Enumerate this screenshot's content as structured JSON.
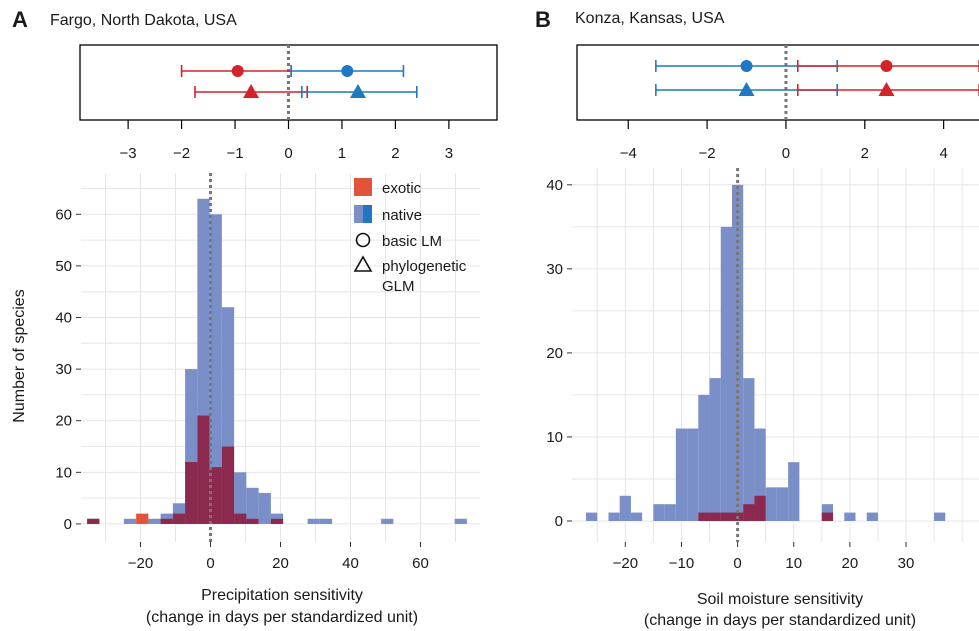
{
  "colors": {
    "exotic": "#d2232a",
    "native": "#1f78c1",
    "hist_native": "#7a8fc8",
    "hist_exotic": "#8b2a4e",
    "exotic_only": "#e0553a",
    "grid": "#e6e6e6",
    "zero_line": "#777777"
  },
  "legend": {
    "exotic": "exotic",
    "native": "native",
    "basic_lm": "basic LM",
    "phylo_line1": "phylogenetic",
    "phylo_line2": "GLM"
  },
  "chart_data": [
    {
      "panel": "A",
      "title": "Fargo, North Dakota, USA",
      "type": "bar",
      "xlabel_line1": "Precipitation sensitivity",
      "xlabel_line2": "(change in days per standardized unit)",
      "ylabel": "Number of species",
      "xlim": [
        -37,
        77
      ],
      "ylim": [
        -3.5,
        68
      ],
      "xticks": [
        -20,
        0,
        20,
        40,
        60
      ],
      "yticks": [
        0,
        10,
        20,
        30,
        40,
        50,
        60
      ],
      "bin_width": 3.5,
      "bins_native": [
        {
          "x": -33.5,
          "count": 1
        },
        {
          "x": -23,
          "count": 1
        },
        {
          "x": -16,
          "count": 1
        },
        {
          "x": -12.5,
          "count": 2
        },
        {
          "x": -9,
          "count": 4
        },
        {
          "x": -5.5,
          "count": 30
        },
        {
          "x": -2,
          "count": 63
        },
        {
          "x": 1.5,
          "count": 60
        },
        {
          "x": 5,
          "count": 42
        },
        {
          "x": 8.5,
          "count": 10
        },
        {
          "x": 12,
          "count": 7
        },
        {
          "x": 15.5,
          "count": 6
        },
        {
          "x": 19,
          "count": 2
        },
        {
          "x": 29.5,
          "count": 1
        },
        {
          "x": 33,
          "count": 1
        },
        {
          "x": 50.5,
          "count": 1
        },
        {
          "x": 71.5,
          "count": 1
        }
      ],
      "bins_exotic": [
        {
          "x": -33.5,
          "count": 1
        },
        {
          "x": -12.5,
          "count": 1
        },
        {
          "x": -9,
          "count": 2
        },
        {
          "x": -5.5,
          "count": 12
        },
        {
          "x": -2,
          "count": 21
        },
        {
          "x": 1.5,
          "count": 11
        },
        {
          "x": 5,
          "count": 15
        },
        {
          "x": 8.5,
          "count": 2
        },
        {
          "x": 12,
          "count": 1
        },
        {
          "x": 19,
          "count": 1
        }
      ],
      "bins_exotic_only": [
        {
          "x": -19.5,
          "count": 2
        }
      ],
      "coef": {
        "xlim": [
          -3.9,
          3.9
        ],
        "xticks": [
          -3,
          -2,
          -1,
          0,
          1,
          2,
          3
        ],
        "estimates": [
          {
            "group": "exotic",
            "model": "basic LM",
            "mean": -0.95,
            "lo": -2.0,
            "hi": 0.05
          },
          {
            "group": "native",
            "model": "basic LM",
            "mean": 1.1,
            "lo": 0.05,
            "hi": 2.15
          },
          {
            "group": "exotic",
            "model": "phylogenetic GLM",
            "mean": -0.7,
            "lo": -1.75,
            "hi": 0.35
          },
          {
            "group": "native",
            "model": "phylogenetic GLM",
            "mean": 1.3,
            "lo": 0.25,
            "hi": 2.4
          }
        ]
      }
    },
    {
      "panel": "B",
      "title": "Konza, Kansas, USA",
      "type": "bar",
      "xlabel_line1": "Soil moisture sensitivity",
      "xlabel_line2": "(change in days per standardized unit)",
      "ylabel": "",
      "xlim": [
        -29.5,
        43
      ],
      "ylim": [
        -2.5,
        42
      ],
      "xticks": [
        -20,
        -10,
        0,
        10,
        20,
        30
      ],
      "yticks": [
        0,
        10,
        20,
        30,
        40
      ],
      "bin_width": 2,
      "bins_native": [
        {
          "x": -26,
          "count": 1
        },
        {
          "x": -20,
          "count": 3
        },
        {
          "x": -22,
          "count": 1
        },
        {
          "x": -18,
          "count": 1
        },
        {
          "x": -14,
          "count": 2
        },
        {
          "x": -12,
          "count": 2
        },
        {
          "x": -10,
          "count": 11
        },
        {
          "x": -8,
          "count": 11
        },
        {
          "x": -6,
          "count": 15
        },
        {
          "x": -4,
          "count": 17
        },
        {
          "x": -2,
          "count": 35
        },
        {
          "x": 0,
          "count": 40
        },
        {
          "x": 2,
          "count": 17
        },
        {
          "x": 4,
          "count": 11
        },
        {
          "x": 6,
          "count": 4
        },
        {
          "x": 8,
          "count": 4
        },
        {
          "x": 10,
          "count": 7
        },
        {
          "x": 12,
          "count": 0
        },
        {
          "x": 16,
          "count": 2
        },
        {
          "x": 20,
          "count": 1
        },
        {
          "x": 24,
          "count": 1
        },
        {
          "x": 36,
          "count": 1
        }
      ],
      "bins_exotic": [
        {
          "x": -6,
          "count": 1
        },
        {
          "x": -4,
          "count": 1
        },
        {
          "x": -2,
          "count": 1
        },
        {
          "x": 0,
          "count": 1
        },
        {
          "x": 2,
          "count": 2
        },
        {
          "x": 4,
          "count": 3
        },
        {
          "x": 16,
          "count": 1
        }
      ],
      "bins_exotic_only": [],
      "coef": {
        "xlim": [
          -5.3,
          5.1
        ],
        "xticks": [
          -4,
          -2,
          0,
          2,
          4
        ],
        "estimates": [
          {
            "group": "native",
            "model": "basic LM",
            "mean": -1.0,
            "lo": -3.3,
            "hi": 1.3
          },
          {
            "group": "exotic",
            "model": "basic LM",
            "mean": 2.55,
            "lo": 0.3,
            "hi": 4.9
          },
          {
            "group": "native",
            "model": "phylogenetic GLM",
            "mean": -1.0,
            "lo": -3.3,
            "hi": 1.3
          },
          {
            "group": "exotic",
            "model": "phylogenetic GLM",
            "mean": 2.55,
            "lo": 0.3,
            "hi": 4.9
          }
        ]
      }
    }
  ]
}
